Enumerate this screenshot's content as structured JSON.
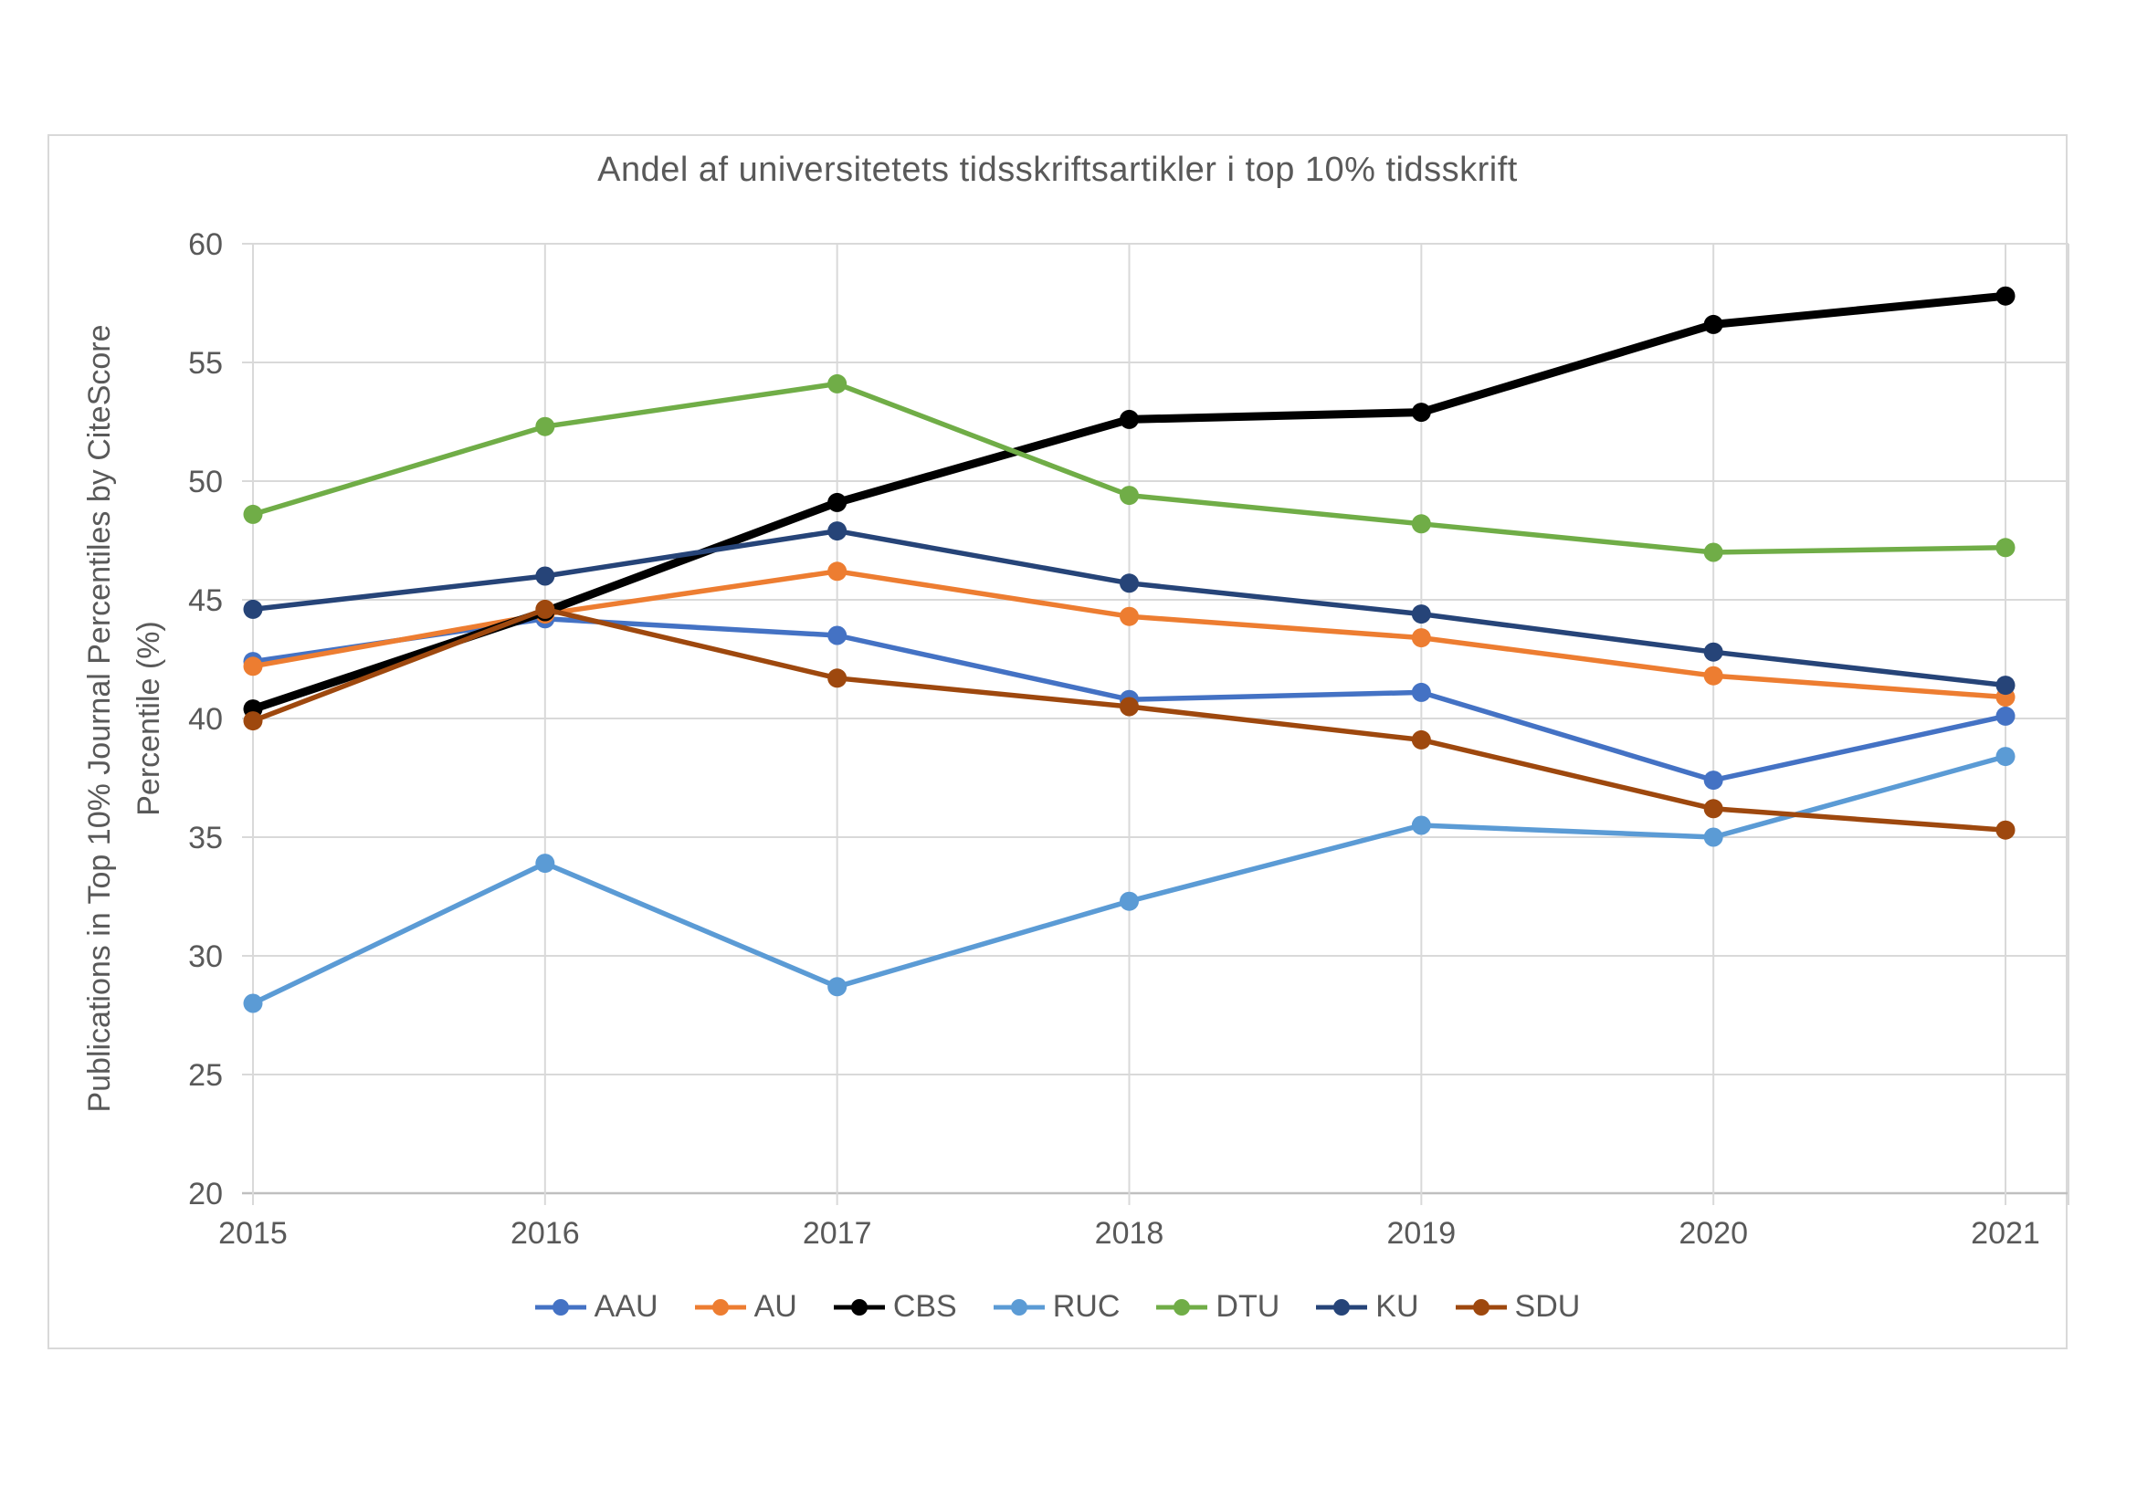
{
  "chart_data": {
    "type": "line",
    "title": "Andel af universitetets tidsskriftsartikler i top 10% tidsskrift",
    "ylabel": "Publications in Top 10% Journal Percentiles by CiteScore Percentile (%)",
    "ylabel_lines": [
      "Publications in Top 10% Journal Percentiles by CiteScore",
      "Percentile (%)"
    ],
    "xlabel": "",
    "categories": [
      "2015",
      "2016",
      "2017",
      "2018",
      "2019",
      "2020",
      "2021"
    ],
    "ylim": [
      20,
      60
    ],
    "ytick_step": 5,
    "grid": true,
    "legend_position": "bottom",
    "grid_color": "#D9D9D9",
    "axis_color": "#BFBFBF",
    "text_color": "#595959",
    "series": [
      {
        "name": "AAU",
        "color": "#4472C4",
        "emphasis": false,
        "values": [
          42.4,
          44.2,
          43.5,
          40.8,
          41.1,
          37.4,
          40.1
        ]
      },
      {
        "name": "AU",
        "color": "#ED7D31",
        "emphasis": false,
        "values": [
          42.2,
          44.4,
          46.2,
          44.3,
          43.4,
          41.8,
          40.9
        ]
      },
      {
        "name": "CBS",
        "color": "#000000",
        "emphasis": true,
        "values": [
          40.4,
          44.5,
          49.1,
          52.6,
          52.9,
          56.6,
          57.8
        ]
      },
      {
        "name": "RUC",
        "color": "#5B9BD5",
        "emphasis": false,
        "values": [
          28.0,
          33.9,
          28.7,
          32.3,
          35.5,
          35.0,
          38.4
        ]
      },
      {
        "name": "DTU",
        "color": "#70AD47",
        "emphasis": false,
        "values": [
          48.6,
          52.3,
          54.1,
          49.4,
          48.2,
          47.0,
          47.2
        ]
      },
      {
        "name": "KU",
        "color": "#264478",
        "emphasis": false,
        "values": [
          44.6,
          46.0,
          47.9,
          45.7,
          44.4,
          42.8,
          41.4
        ]
      },
      {
        "name": "SDU",
        "color": "#9E480E",
        "emphasis": false,
        "values": [
          39.9,
          44.6,
          41.7,
          40.5,
          39.1,
          36.2,
          35.3
        ]
      }
    ]
  }
}
